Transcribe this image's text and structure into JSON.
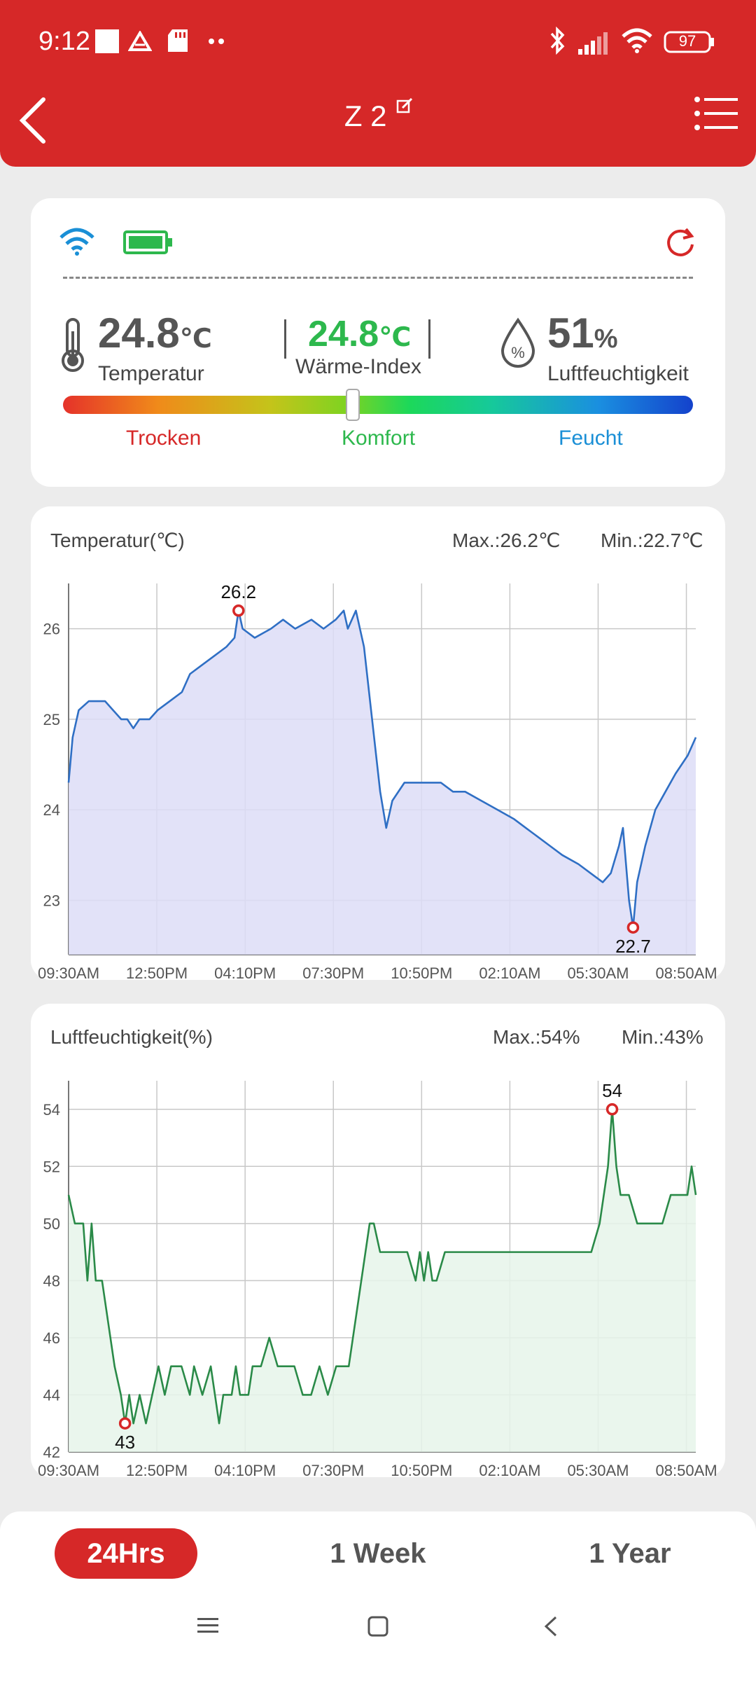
{
  "status_bar": {
    "time": "9:12",
    "battery": "97",
    "icons": [
      "square-icon",
      "drive-icon",
      "sd-card-icon",
      "dots-icon",
      "bluetooth-icon",
      "signal-icon",
      "wifi-icon",
      "battery-icon"
    ]
  },
  "header": {
    "title": "Z 2",
    "back_icon": "back-arrow-icon",
    "edit_icon": "edit-icon",
    "menu_icon": "menu-icon"
  },
  "device_status": {
    "icons": [
      "wifi-icon",
      "battery-icon",
      "refresh-icon"
    ],
    "temperature": {
      "value": "24.8",
      "unit": "℃",
      "label": "Temperatur"
    },
    "heat_index": {
      "value": "24.8",
      "unit": "℃",
      "label": "Wärme-Index"
    },
    "humidity": {
      "value": "51",
      "unit": "%",
      "label": "Luftfeuchtigkeit"
    },
    "scale": {
      "labels": [
        "Trocken",
        "Komfort",
        "Feucht"
      ],
      "position": 0.46
    },
    "colors": {
      "dry": "#d62828",
      "comfort": "#2db84d",
      "humid": "#1a8fd6",
      "heat_index": "#2db84d"
    }
  },
  "chart_data": [
    {
      "type": "area",
      "title": "Temperatur(℃)",
      "max_label": "Max.:26.2℃",
      "min_label": "Min.:22.7℃",
      "x_ticks": [
        "09:30AM",
        "12:50PM",
        "04:10PM",
        "07:30PM",
        "10:50PM",
        "02:10AM",
        "05:30AM",
        "08:50AM"
      ],
      "y_ticks": [
        23,
        24,
        25,
        26
      ],
      "ylim": [
        22.4,
        26.5
      ],
      "grid": true,
      "color": "#2f6fc4",
      "fill": "#ddddf7",
      "series": [
        {
          "points": [
            [
              0,
              24.3
            ],
            [
              0.1,
              24.8
            ],
            [
              0.25,
              25.1
            ],
            [
              0.5,
              25.2
            ],
            [
              0.9,
              25.2
            ],
            [
              1.1,
              25.1
            ],
            [
              1.3,
              25.0
            ],
            [
              1.45,
              25.0
            ],
            [
              1.6,
              24.9
            ],
            [
              1.75,
              25.0
            ],
            [
              2.0,
              25.0
            ],
            [
              2.2,
              25.1
            ],
            [
              2.5,
              25.2
            ],
            [
              2.8,
              25.3
            ],
            [
              3.0,
              25.5
            ],
            [
              3.3,
              25.6
            ],
            [
              3.6,
              25.7
            ],
            [
              3.9,
              25.8
            ],
            [
              4.1,
              25.9
            ],
            [
              4.2,
              26.2
            ],
            [
              4.3,
              26.0
            ],
            [
              4.6,
              25.9
            ],
            [
              5.0,
              26.0
            ],
            [
              5.3,
              26.1
            ],
            [
              5.6,
              26.0
            ],
            [
              6.0,
              26.1
            ],
            [
              6.3,
              26.0
            ],
            [
              6.6,
              26.1
            ],
            [
              6.8,
              26.2
            ],
            [
              6.9,
              26.0
            ],
            [
              7.1,
              26.2
            ],
            [
              7.3,
              25.8
            ],
            [
              7.5,
              25.0
            ],
            [
              7.7,
              24.2
            ],
            [
              7.85,
              23.8
            ],
            [
              8.0,
              24.1
            ],
            [
              8.3,
              24.3
            ],
            [
              8.8,
              24.3
            ],
            [
              9.2,
              24.3
            ],
            [
              9.5,
              24.2
            ],
            [
              9.8,
              24.2
            ],
            [
              10.2,
              24.1
            ],
            [
              10.6,
              24.0
            ],
            [
              11.0,
              23.9
            ],
            [
              11.3,
              23.8
            ],
            [
              11.6,
              23.7
            ],
            [
              11.9,
              23.6
            ],
            [
              12.2,
              23.5
            ],
            [
              12.6,
              23.4
            ],
            [
              12.9,
              23.3
            ],
            [
              13.2,
              23.2
            ],
            [
              13.4,
              23.3
            ],
            [
              13.6,
              23.6
            ],
            [
              13.7,
              23.8
            ],
            [
              13.85,
              23.0
            ],
            [
              13.95,
              22.7
            ],
            [
              14.05,
              23.2
            ],
            [
              14.25,
              23.6
            ],
            [
              14.5,
              24.0
            ],
            [
              14.75,
              24.2
            ],
            [
              15.0,
              24.4
            ],
            [
              15.3,
              24.6
            ],
            [
              15.5,
              24.8
            ]
          ]
        }
      ],
      "x_range": [
        0,
        15.5
      ],
      "annotations": [
        {
          "x": 4.2,
          "y": 26.2,
          "label": "26.2"
        },
        {
          "x": 13.95,
          "y": 22.7,
          "label": "22.7"
        }
      ]
    },
    {
      "type": "area",
      "title": "Luftfeuchtigkeit(%)",
      "max_label": "Max.:54%",
      "min_label": "Min.:43%",
      "x_ticks": [
        "09:30AM",
        "12:50PM",
        "04:10PM",
        "07:30PM",
        "10:50PM",
        "02:10AM",
        "05:30AM",
        "08:50AM"
      ],
      "y_ticks": [
        42,
        44,
        46,
        48,
        50,
        52,
        54
      ],
      "ylim": [
        42,
        55
      ],
      "grid": true,
      "color": "#2a8a48",
      "fill": "#e6f4ea",
      "series": [
        {
          "points": [
            [
              0,
              51
            ],
            [
              0.15,
              50
            ],
            [
              0.35,
              50
            ],
            [
              0.45,
              48
            ],
            [
              0.55,
              50
            ],
            [
              0.65,
              48
            ],
            [
              0.8,
              48
            ],
            [
              0.9,
              47
            ],
            [
              1.0,
              46
            ],
            [
              1.1,
              45
            ],
            [
              1.25,
              44
            ],
            [
              1.35,
              43
            ],
            [
              1.45,
              44
            ],
            [
              1.55,
              43
            ],
            [
              1.7,
              44
            ],
            [
              1.85,
              43
            ],
            [
              2.0,
              44
            ],
            [
              2.15,
              45
            ],
            [
              2.3,
              44
            ],
            [
              2.45,
              45
            ],
            [
              2.7,
              45
            ],
            [
              2.9,
              44
            ],
            [
              3.0,
              45
            ],
            [
              3.2,
              44
            ],
            [
              3.4,
              45
            ],
            [
              3.5,
              44
            ],
            [
              3.6,
              43
            ],
            [
              3.7,
              44
            ],
            [
              3.9,
              44
            ],
            [
              4.0,
              45
            ],
            [
              4.1,
              44
            ],
            [
              4.3,
              44
            ],
            [
              4.4,
              45
            ],
            [
              4.6,
              45
            ],
            [
              4.8,
              46
            ],
            [
              5.0,
              45
            ],
            [
              5.2,
              45
            ],
            [
              5.4,
              45
            ],
            [
              5.6,
              44
            ],
            [
              5.8,
              44
            ],
            [
              6.0,
              45
            ],
            [
              6.2,
              44
            ],
            [
              6.4,
              45
            ],
            [
              6.7,
              45
            ],
            [
              6.8,
              46
            ],
            [
              6.9,
              47
            ],
            [
              7.0,
              48
            ],
            [
              7.1,
              49
            ],
            [
              7.2,
              50
            ],
            [
              7.3,
              50
            ],
            [
              7.45,
              49
            ],
            [
              7.8,
              49
            ],
            [
              8.1,
              49
            ],
            [
              8.3,
              48
            ],
            [
              8.4,
              49
            ],
            [
              8.5,
              48
            ],
            [
              8.6,
              49
            ],
            [
              8.7,
              48
            ],
            [
              8.8,
              48
            ],
            [
              9.0,
              49
            ],
            [
              9.5,
              49
            ],
            [
              10.0,
              49
            ],
            [
              10.5,
              49
            ],
            [
              11.0,
              49
            ],
            [
              11.5,
              49
            ],
            [
              12.0,
              49
            ],
            [
              12.5,
              49
            ],
            [
              12.7,
              50
            ],
            [
              12.8,
              51
            ],
            [
              12.9,
              52
            ],
            [
              13.0,
              54
            ],
            [
              13.1,
              52
            ],
            [
              13.2,
              51
            ],
            [
              13.4,
              51
            ],
            [
              13.6,
              50
            ],
            [
              13.8,
              50
            ],
            [
              14.0,
              50
            ],
            [
              14.2,
              50
            ],
            [
              14.4,
              51
            ],
            [
              14.6,
              51
            ],
            [
              14.8,
              51
            ],
            [
              14.9,
              52
            ],
            [
              15.0,
              51
            ]
          ]
        }
      ],
      "x_range": [
        0,
        15.0
      ],
      "annotations": [
        {
          "x": 13.0,
          "y": 54,
          "label": "54"
        },
        {
          "x": 1.35,
          "y": 43,
          "label": "43"
        }
      ]
    }
  ],
  "tabs": [
    {
      "label": "24Hrs",
      "active": true
    },
    {
      "label": "1 Week",
      "active": false
    },
    {
      "label": "1 Year",
      "active": false
    }
  ],
  "system_nav": [
    "menu-icon",
    "home-icon",
    "back-icon"
  ]
}
